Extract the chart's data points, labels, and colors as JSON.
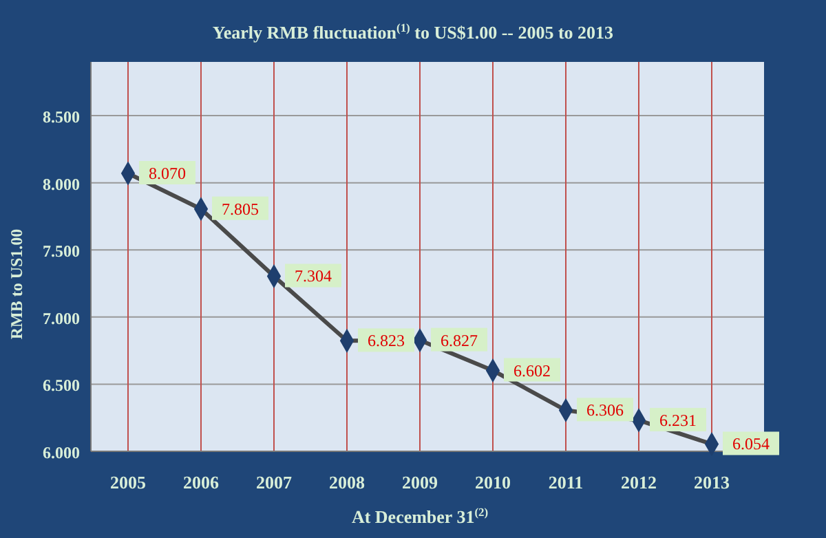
{
  "chart_data": {
    "type": "line",
    "title": "Yearly RMB fluctuation$^{(1)}$ to US$1.00 -- 2005 to 2013",
    "xlabel": "At December 31$^{(2)}$",
    "ylabel": "RMB to US1.00",
    "categories": [
      "2005",
      "2006",
      "2007",
      "2008",
      "2009",
      "2010",
      "2011",
      "2012",
      "2013"
    ],
    "series": [
      {
        "color": "#4a4a4a",
        "values": [
          8.07,
          7.805,
          7.304,
          6.823,
          6.827,
          6.602,
          6.306,
          6.231,
          6.054
        ]
      }
    ],
    "value_labels": [
      "8.070",
      "7.805",
      "7.304",
      "6.823",
      "6.827",
      "6.602",
      "6.306",
      "6.231",
      "6.054"
    ],
    "ylim": [
      6,
      8.9
    ],
    "yticks": [
      {
        "value": 6,
        "label": "6.000"
      },
      {
        "value": 6.5,
        "label": "6.500"
      },
      {
        "value": 7,
        "label": "7.000"
      },
      {
        "value": 7.5,
        "label": "7.500"
      },
      {
        "value": 8,
        "label": "8.000"
      },
      {
        "value": 8.5,
        "label": "8.500"
      }
    ],
    "grid": true,
    "marker": "diamond",
    "line_style": "solid"
  }
}
